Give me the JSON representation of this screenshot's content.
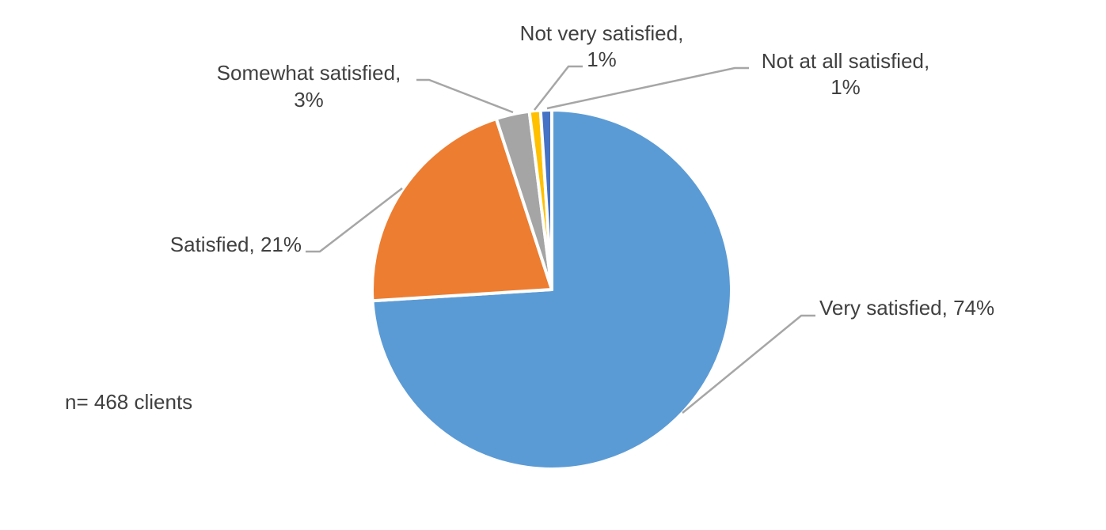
{
  "chart_data": {
    "type": "pie",
    "categories": [
      "Very satisfied",
      "Satisfied",
      "Somewhat satisfied",
      "Not very satisfied",
      "Not at all satisfied"
    ],
    "values": [
      74,
      21,
      3,
      1,
      1
    ],
    "labels": [
      [
        "Very satisfied, 74%"
      ],
      [
        "Satisfied, 21%"
      ],
      [
        "Somewhat satisfied,",
        "3%"
      ],
      [
        "Not very satisfied,",
        "1%"
      ],
      [
        "Not at all satisfied,",
        "1%"
      ]
    ],
    "colors": [
      "#5b9bd5",
      "#ed7d31",
      "#a5a5a5",
      "#ffc000",
      "#4472c4"
    ],
    "start_angle_deg": 0,
    "direction": "clockwise",
    "annotation": "n= 468 clients",
    "legend": "none"
  }
}
